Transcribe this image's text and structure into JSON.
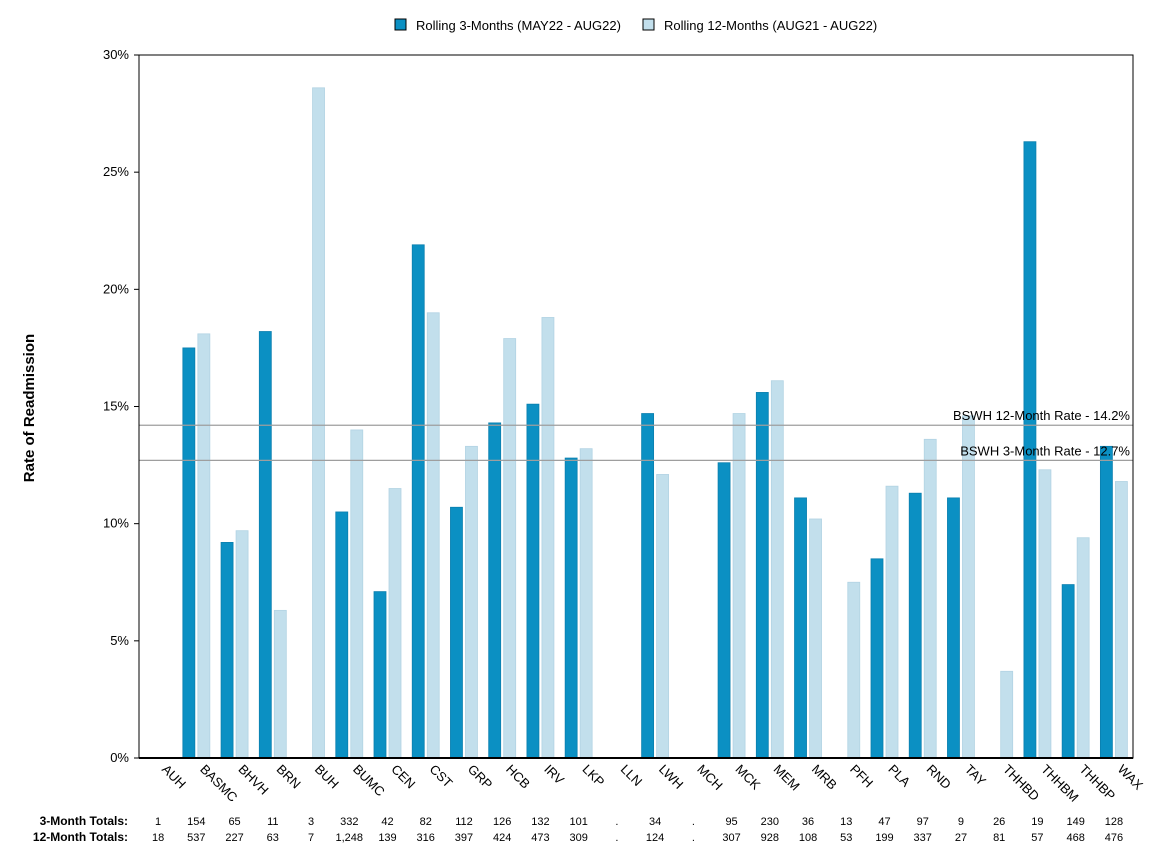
{
  "chart_data": {
    "type": "bar",
    "ylabel": "Rate of Readmission",
    "ylim": [
      0,
      30
    ],
    "yticks": [
      0,
      5,
      10,
      15,
      20,
      25,
      30
    ],
    "y_tick_suffix": "%",
    "categories": [
      "AUH",
      "BASMC",
      "BHVH",
      "BRN",
      "BUH",
      "BUMC",
      "CEN",
      "CST",
      "GRP",
      "HCB",
      "IRV",
      "LKP",
      "LLN",
      "LWH",
      "MCH",
      "MCK",
      "MEM",
      "MRB",
      "PFH",
      "PLA",
      "RND",
      "TAY",
      "THHBD",
      "THHBM",
      "THHBP",
      "WAX"
    ],
    "series": [
      {
        "name": "Rolling 3-Months (MAY22 - AUG22)",
        "color": "#0b90c3",
        "values": [
          0,
          17.5,
          9.2,
          18.2,
          0,
          10.5,
          7.1,
          21.9,
          10.7,
          14.3,
          15.1,
          12.8,
          0,
          14.7,
          0,
          12.6,
          15.6,
          11.1,
          0,
          8.5,
          11.3,
          11.1,
          0,
          26.3,
          7.4,
          13.3
        ]
      },
      {
        "name": "Rolling 12-Months (AUG21 - AUG22)",
        "color": "#c2dfec",
        "values": [
          0,
          18.1,
          9.7,
          6.3,
          28.6,
          14.0,
          11.5,
          19.0,
          13.3,
          17.9,
          18.8,
          13.2,
          0,
          12.1,
          0,
          14.7,
          16.1,
          10.2,
          7.5,
          11.6,
          13.6,
          14.6,
          3.7,
          12.3,
          9.4,
          11.8
        ]
      }
    ],
    "reference_lines": [
      {
        "label": "BSWH 12-Month Rate - 14.2%",
        "value": 14.2
      },
      {
        "label": "BSWH  3-Month Rate - 12.7%",
        "value": 12.7
      }
    ],
    "legend_position": "top-center",
    "grid": false,
    "totals_rows": [
      {
        "label": "3-Month Totals:",
        "values": [
          "1",
          "154",
          "65",
          "11",
          "3",
          "332",
          "42",
          "82",
          "112",
          "126",
          "132",
          "101",
          ".",
          "34",
          ".",
          "95",
          "230",
          "36",
          "13",
          "47",
          "97",
          "9",
          "26",
          "19",
          "149",
          "128"
        ]
      },
      {
        "label": "12-Month Totals:",
        "values": [
          "18",
          "537",
          "227",
          "63",
          "7",
          "1,248",
          "139",
          "316",
          "397",
          "424",
          "473",
          "309",
          ".",
          "124",
          ".",
          "307",
          "928",
          "108",
          "53",
          "199",
          "337",
          "27",
          "81",
          "57",
          "468",
          "476"
        ]
      }
    ]
  }
}
